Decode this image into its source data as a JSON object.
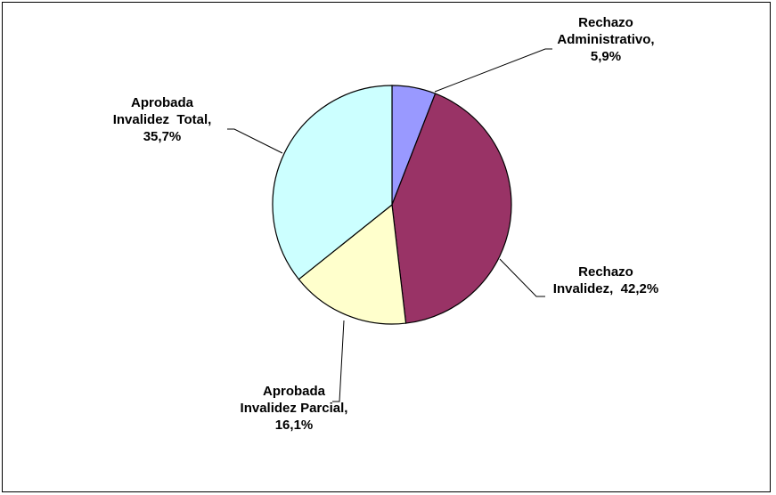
{
  "chart_data": {
    "type": "pie",
    "title": "",
    "slices": [
      {
        "name": "Rechazo Administrativo",
        "value": 5.9,
        "color": "#9999FF",
        "label_lines": [
          "Rechazo",
          "Administrativo,",
          "5,9%"
        ]
      },
      {
        "name": "Rechazo Invalidez",
        "value": 42.2,
        "color": "#993366",
        "label_lines": [
          "Rechazo",
          "Invalidez,  42,2%"
        ]
      },
      {
        "name": "Aprobada Invalidez Parcial",
        "value": 16.1,
        "color": "#FFFFCC",
        "label_lines": [
          "Aprobada",
          "Invalidez Parcial,",
          "16,1%"
        ]
      },
      {
        "name": "Aprobada Invalidez Total",
        "value": 35.7,
        "color": "#CCFFFF",
        "label_lines": [
          "Aprobada",
          "Invalidez  Total,",
          "35,7%"
        ]
      }
    ],
    "start_angle": "12 o'clock",
    "direction": "clockwise",
    "legend": "none",
    "data_labels": "outside with leader lines"
  }
}
